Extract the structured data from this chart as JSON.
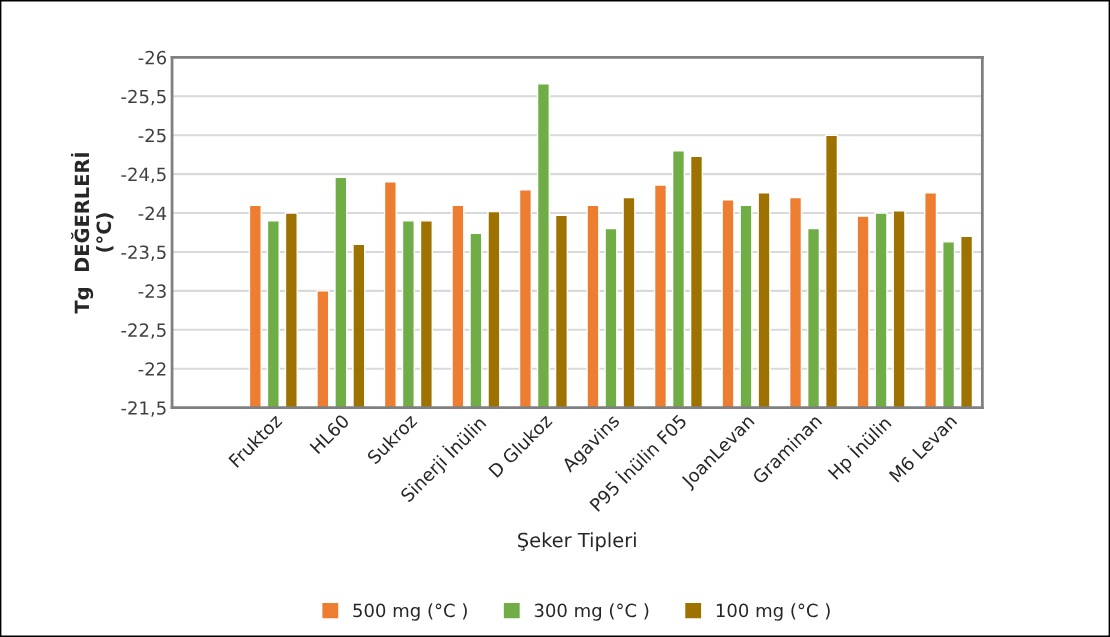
{
  "chart_data": {
    "type": "bar",
    "xlabel": "Şeker Tipleri",
    "ylabel": "Tg  DEĞERLERİ\n(°C)",
    "categories": [
      null,
      "Fruktoz",
      "HL60",
      "Sukroz",
      "Sinerji İnülin",
      "D Glukoz",
      "Agavins",
      "P95 İnülin F05",
      "JoanLevan",
      "Graminan",
      "Hp İnülin",
      "M6 Levan"
    ],
    "series": [
      {
        "name": "500 mg (°C )",
        "color": "#ed7d31",
        "values": [
          null,
          -24.1,
          -23.0,
          -24.4,
          -24.1,
          -24.3,
          -24.1,
          -24.36,
          -24.17,
          -24.2,
          -23.96,
          -24.26
        ]
      },
      {
        "name": "300 mg (°C )",
        "color": "#70ad47",
        "values": [
          null,
          -23.9,
          -24.46,
          -23.9,
          -23.74,
          -25.66,
          -23.8,
          -24.8,
          -24.1,
          -23.8,
          -24.0,
          -23.63
        ]
      },
      {
        "name": "100 mg (°C )",
        "color": "#9e7200",
        "values": [
          null,
          -24.0,
          -23.6,
          -23.9,
          -24.02,
          -23.97,
          -24.2,
          -24.73,
          -24.26,
          -25.0,
          -24.03,
          -23.7
        ]
      }
    ],
    "ylim": [
      -21.5,
      -26
    ],
    "yticks": [
      {
        "value": -21.5,
        "label": "-21,5"
      },
      -22,
      {
        "value": -22.5,
        "label": "-22,5"
      },
      -23,
      {
        "value": -23.5,
        "label": "-23,5"
      },
      -24,
      {
        "value": -24.5,
        "label": "-24,5"
      },
      -25,
      {
        "value": -25.5,
        "label": "-25,5"
      },
      -26
    ],
    "grid": "y",
    "legend": "bottom"
  }
}
